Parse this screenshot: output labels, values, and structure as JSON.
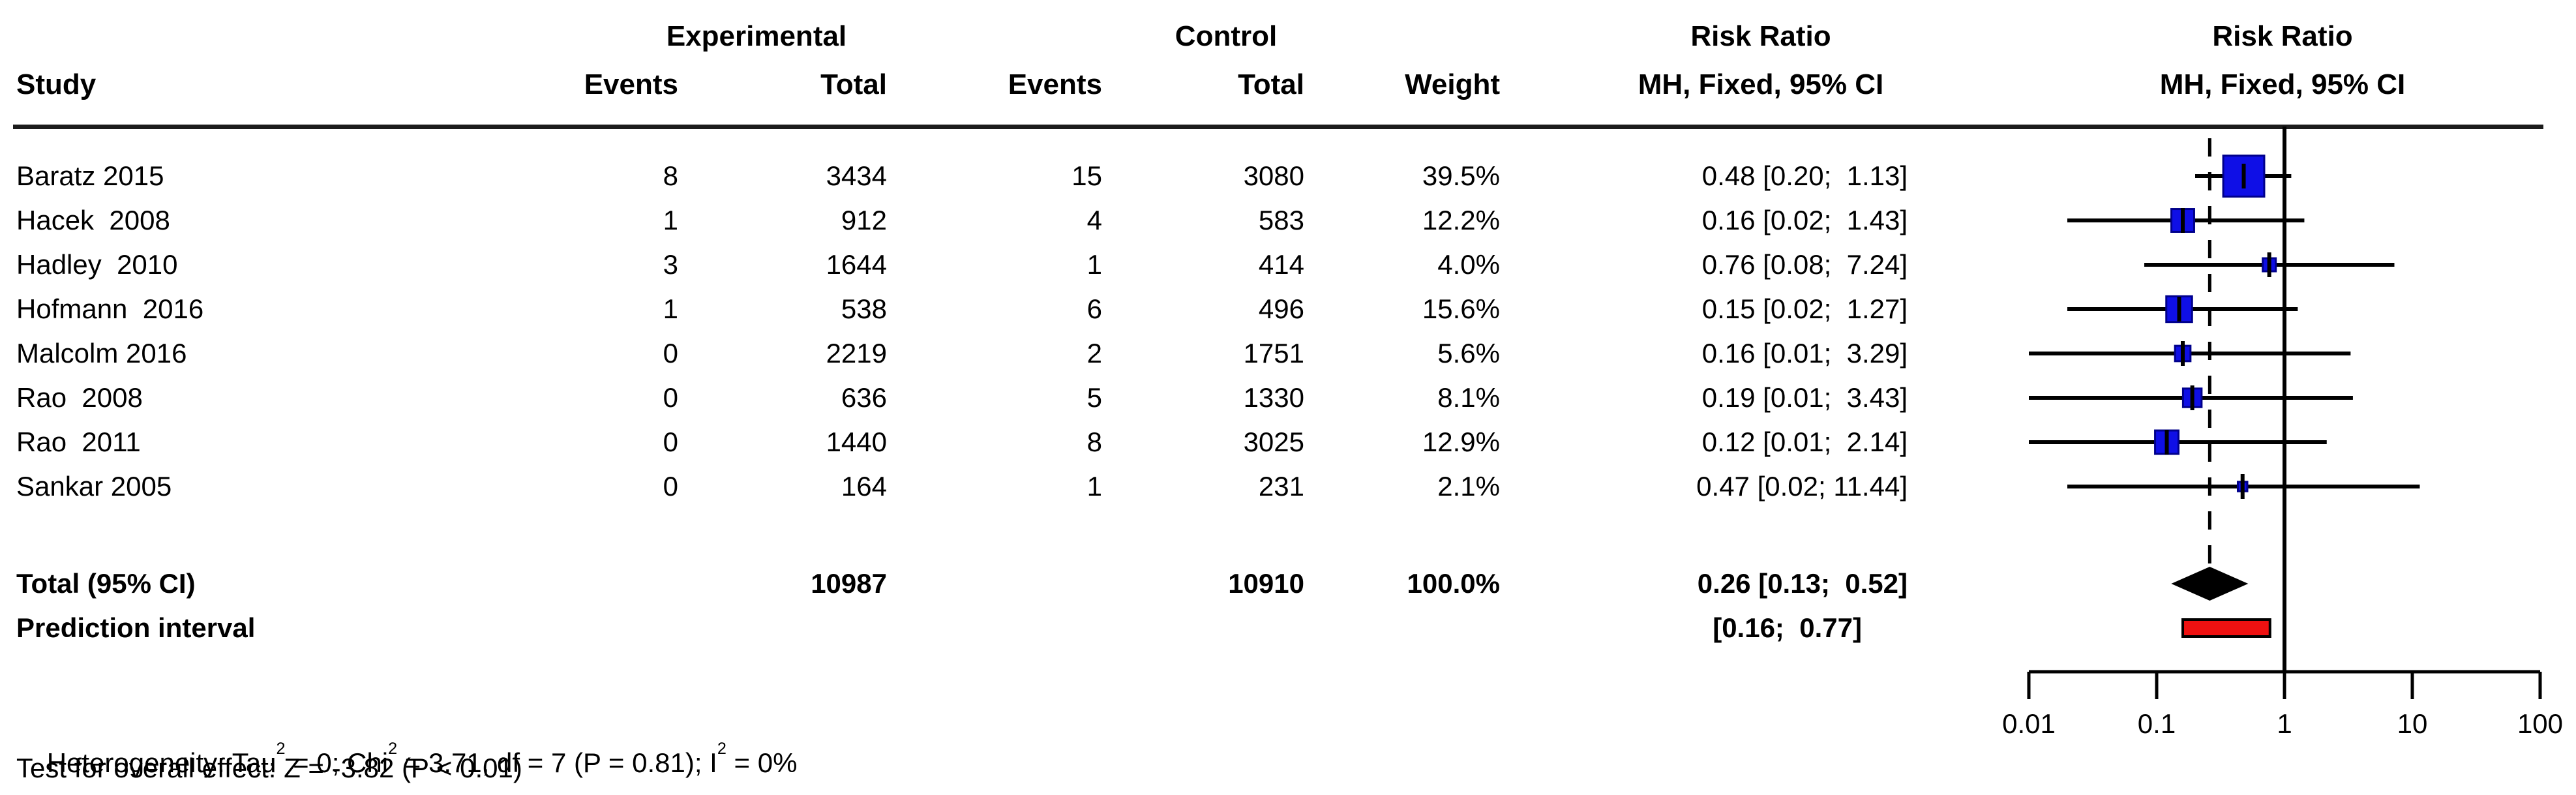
{
  "header": {
    "study": "Study",
    "experimental": "Experimental",
    "control": "Control",
    "events": "Events",
    "total": "Total",
    "weight": "Weight",
    "risk_ratio_line1": "Risk Ratio",
    "risk_ratio_line2": "MH, Fixed, 95% CI"
  },
  "studies": [
    {
      "study": "Baratz 2015",
      "e_events": "8",
      "e_total": "3434",
      "c_events": "15",
      "c_total": "3080",
      "weight": "39.5%",
      "rr": "0.48 [0.20;  1.13]"
    },
    {
      "study": "Hacek  2008",
      "e_events": "1",
      "e_total": "912",
      "c_events": "4",
      "c_total": "583",
      "weight": "12.2%",
      "rr": "0.16 [0.02;  1.43]"
    },
    {
      "study": "Hadley  2010",
      "e_events": "3",
      "e_total": "1644",
      "c_events": "1",
      "c_total": "414",
      "weight": "4.0%",
      "rr": "0.76 [0.08;  7.24]"
    },
    {
      "study": "Hofmann  2016",
      "e_events": "1",
      "e_total": "538",
      "c_events": "6",
      "c_total": "496",
      "weight": "15.6%",
      "rr": "0.15 [0.02;  1.27]"
    },
    {
      "study": "Malcolm 2016",
      "e_events": "0",
      "e_total": "2219",
      "c_events": "2",
      "c_total": "1751",
      "weight": "5.6%",
      "rr": "0.16 [0.01;  3.29]"
    },
    {
      "study": "Rao  2008",
      "e_events": "0",
      "e_total": "636",
      "c_events": "5",
      "c_total": "1330",
      "weight": "8.1%",
      "rr": "0.19 [0.01;  3.43]"
    },
    {
      "study": "Rao  2011",
      "e_events": "0",
      "e_total": "1440",
      "c_events": "8",
      "c_total": "3025",
      "weight": "12.9%",
      "rr": "0.12 [0.01;  2.14]"
    },
    {
      "study": "Sankar 2005",
      "e_events": "0",
      "e_total": "164",
      "c_events": "1",
      "c_total": "231",
      "weight": "2.1%",
      "rr": "0.47 [0.02; 11.44]"
    }
  ],
  "total": {
    "label": "Total (95% CI)",
    "e_total": "10987",
    "c_total": "10910",
    "weight": "100.0%",
    "rr": "0.26 [0.13;  0.52]"
  },
  "prediction": {
    "label": "Prediction interval",
    "rr": "[0.16;  0.77]"
  },
  "footer": {
    "het": [
      "Heterogeneity: Tau",
      "2",
      " = 0; Chi",
      "2",
      " = 3.71, df = 7 (P = 0.81); I",
      "2",
      " = 0%"
    ],
    "test": "Test for overall effect: Z = -3.82 (P < 0.01)"
  },
  "colors": {
    "square_fill": "#0f0fe6",
    "square_border": "#00008b",
    "prediction_fill": "#ee1111",
    "diamond_fill": "#000000",
    "line": "#000000"
  },
  "chart_data": {
    "type": "forest",
    "effect_measure": "Risk Ratio (MH, Fixed, 95% CI)",
    "x_scale": "log10",
    "xlim": [
      0.01,
      100
    ],
    "axis_ticks": [
      0.01,
      0.1,
      1,
      10,
      100
    ],
    "axis_tick_labels": [
      "0.01",
      "0.1",
      "1",
      "10",
      "100"
    ],
    "reference_line": 1,
    "dashed_line_at": 0.26,
    "studies": [
      {
        "name": "Baratz 2015",
        "est": 0.48,
        "low": 0.2,
        "high": 1.13,
        "weight": 39.5
      },
      {
        "name": "Hacek 2008",
        "est": 0.16,
        "low": 0.02,
        "high": 1.43,
        "weight": 12.2
      },
      {
        "name": "Hadley 2010",
        "est": 0.76,
        "low": 0.08,
        "high": 7.24,
        "weight": 4.0
      },
      {
        "name": "Hofmann 2016",
        "est": 0.15,
        "low": 0.02,
        "high": 1.27,
        "weight": 15.6
      },
      {
        "name": "Malcolm 2016",
        "est": 0.16,
        "low": 0.01,
        "high": 3.29,
        "weight": 5.6
      },
      {
        "name": "Rao 2008",
        "est": 0.19,
        "low": 0.01,
        "high": 3.43,
        "weight": 8.1
      },
      {
        "name": "Rao 2011",
        "est": 0.12,
        "low": 0.01,
        "high": 2.14,
        "weight": 12.9
      },
      {
        "name": "Sankar 2005",
        "est": 0.47,
        "low": 0.02,
        "high": 11.44,
        "weight": 2.1
      }
    ],
    "pooled": {
      "label": "Total (95% CI)",
      "est": 0.26,
      "low": 0.13,
      "high": 0.52,
      "weight": 100.0
    },
    "prediction_interval": {
      "low": 0.16,
      "high": 0.77
    },
    "heterogeneity": {
      "tau2": 0,
      "chi2": 3.71,
      "df": 7,
      "p": 0.81,
      "i2_pct": 0
    },
    "overall_effect": {
      "z": -3.82,
      "p": "< 0.01"
    }
  }
}
